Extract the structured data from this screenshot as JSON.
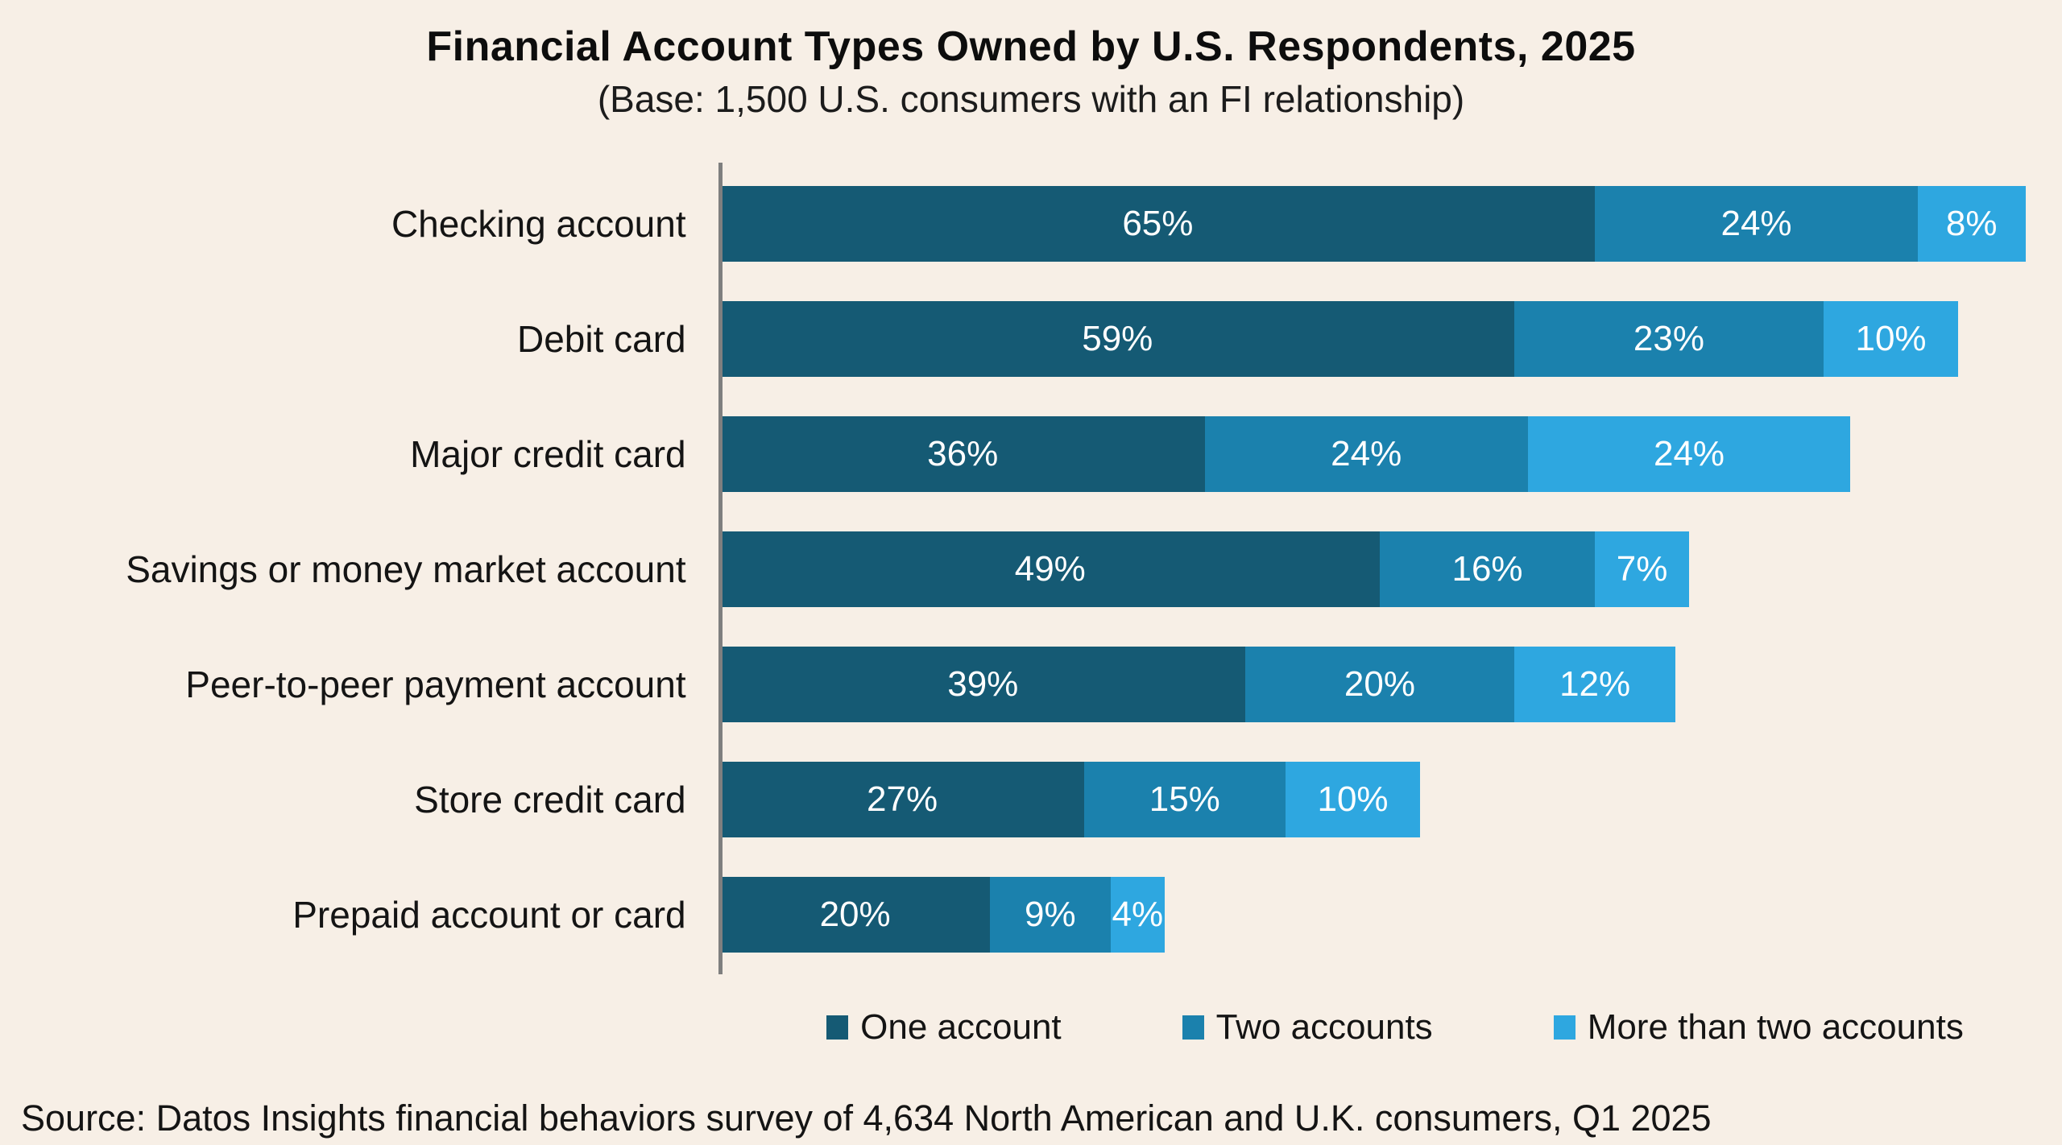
{
  "title": "Financial Account Types Owned by U.S. Respondents, 2025",
  "subtitle": "(Base: 1,500 U.S. consumers with an FI relationship)",
  "source": "Source: Datos Insights financial behaviors survey of 4,634 North American and U.K. consumers, Q1 2025",
  "colors": {
    "background": "#f7efe6",
    "axis_line": "#7f7f7f",
    "text": "#111111",
    "bar_label_text": "#ffffff",
    "series": [
      "#155a74",
      "#1b81ad",
      "#2ea7e0"
    ]
  },
  "chart_data": {
    "type": "bar",
    "orientation": "horizontal",
    "stacked": true,
    "title": "Financial Account Types Owned by U.S. Respondents, 2025",
    "subtitle": "(Base: 1,500 U.S. consumers with an FI relationship)",
    "categories": [
      "Checking account",
      "Debit card",
      "Major credit card",
      "Savings or money market account",
      "Peer-to-peer payment account",
      "Store credit card",
      "Prepaid account or card"
    ],
    "series": [
      {
        "name": "One account",
        "values": [
          65,
          59,
          36,
          49,
          39,
          27,
          20
        ]
      },
      {
        "name": "Two accounts",
        "values": [
          24,
          23,
          24,
          16,
          20,
          15,
          9
        ]
      },
      {
        "name": "More than two accounts",
        "values": [
          8,
          10,
          24,
          7,
          12,
          10,
          4
        ]
      }
    ],
    "value_suffix": "%",
    "xlim": [
      0,
      100
    ],
    "grid": false,
    "legend_position": "bottom"
  }
}
